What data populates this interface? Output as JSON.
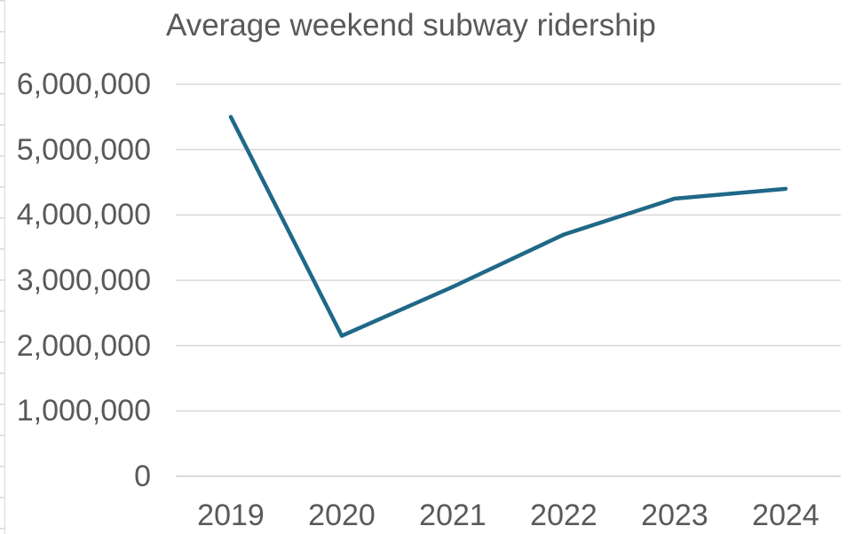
{
  "chart_data": {
    "type": "line",
    "title": "Average weekend subway ridership",
    "categories": [
      "2019",
      "2020",
      "2021",
      "2022",
      "2023",
      "2024"
    ],
    "series": [
      {
        "name": "Average weekend subway ridership",
        "values": [
          5500000,
          2150000,
          2900000,
          3700000,
          4250000,
          4400000
        ]
      }
    ],
    "xlabel": "",
    "ylabel": "",
    "ylim": [
      0,
      6000000
    ],
    "y_tick_interval": 1000000,
    "y_tick_labels": [
      "0",
      "1,000,000",
      "2,000,000",
      "3,000,000",
      "4,000,000",
      "5,000,000",
      "6,000,000"
    ],
    "grid": "horizontal-major",
    "legend": "none",
    "colors": {
      "line": "#1f6888",
      "gridline": "#d9d9d9",
      "axis_line": "#cfcfcf",
      "label_text": "#595959",
      "title_text": "#595959",
      "background": "#ffffff",
      "sheet_gridline": "#d9d9d9"
    }
  }
}
